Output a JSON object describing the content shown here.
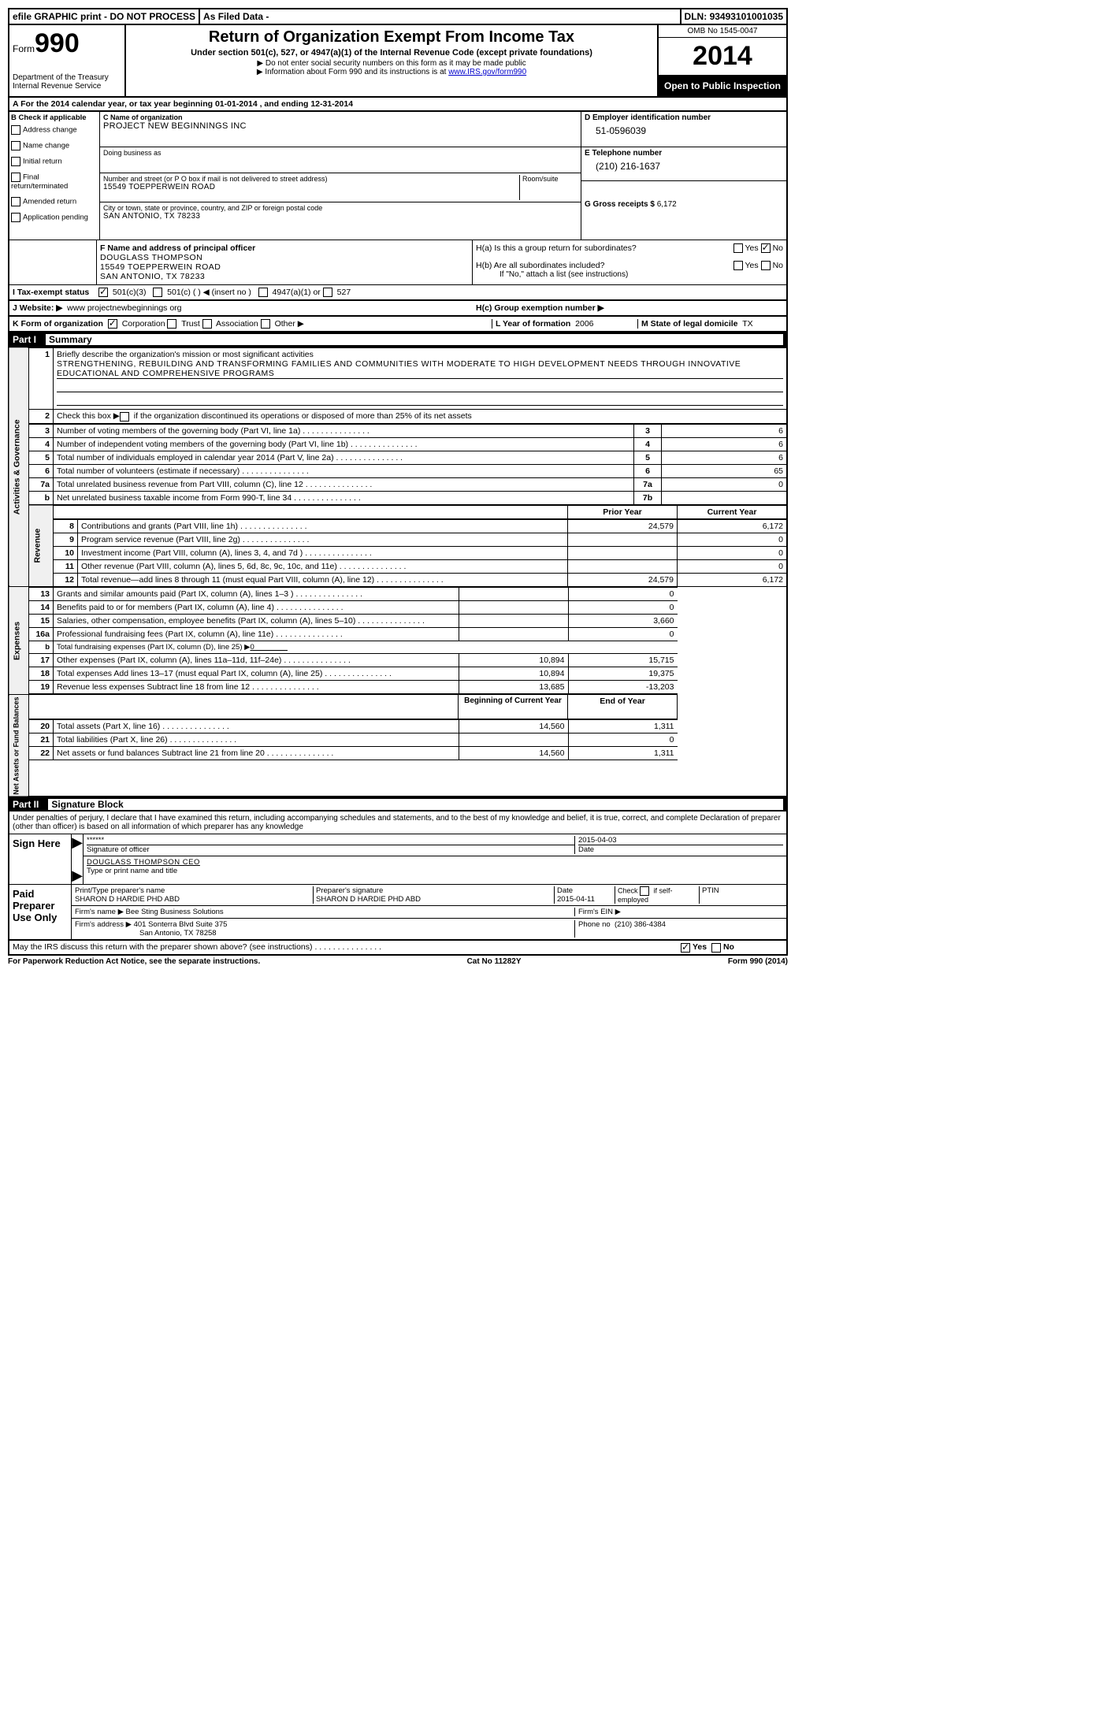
{
  "top": {
    "efile": "efile GRAPHIC print - DO NOT PROCESS",
    "asfiled": "As Filed Data -",
    "dln_label": "DLN:",
    "dln": "93493101001035"
  },
  "header": {
    "form_label": "Form",
    "form_num": "990",
    "dept": "Department of the Treasury",
    "irs": "Internal Revenue Service",
    "title": "Return of Organization Exempt From Income Tax",
    "subtitle": "Under section 501(c), 527, or 4947(a)(1) of the Internal Revenue Code (except private foundations)",
    "note1": "▶ Do not enter social security numbers on this form as it may be made public",
    "note2_pre": "▶ Information about Form 990 and its instructions is at ",
    "note2_link": "www.IRS.gov/form990",
    "omb": "OMB No 1545-0047",
    "year": "2014",
    "inspection": "Open to Public Inspection"
  },
  "row_a": "A For the 2014 calendar year, or tax year beginning 01-01-2014    , and ending 12-31-2014",
  "check_b": {
    "title": "B  Check if applicable",
    "opts": [
      "Address change",
      "Name change",
      "Initial return",
      "Final return/terminated",
      "Amended return",
      "Application pending"
    ]
  },
  "box_c": {
    "c_label": "C Name of organization",
    "name": "PROJECT NEW BEGINNINGS INC",
    "dba_label": "Doing business as",
    "addr_label": "Number and street (or P O  box if mail is not delivered to street address)",
    "room_label": "Room/suite",
    "addr": "15549 TOEPPERWEIN ROAD",
    "city_label": "City or town, state or province, country, and ZIP or foreign postal code",
    "city": "SAN ANTONIO, TX  78233"
  },
  "box_d": {
    "d_label": "D Employer identification number",
    "ein": "51-0596039",
    "e_label": "E Telephone number",
    "phone": "(210) 216-1637",
    "g_label": "G Gross receipts $",
    "g_val": "6,172"
  },
  "box_f": {
    "f_label": "F  Name and address of principal officer",
    "name": "DOUGLASS THOMPSON",
    "addr1": "15549 TOEPPERWEIN ROAD",
    "addr2": "SAN ANTONIO, TX 78233"
  },
  "box_h": {
    "ha": "H(a)  Is this a group return for subordinates?",
    "hb": "H(b)  Are all subordinates included?",
    "hb_note": "If \"No,\" attach a list  (see instructions)",
    "hc": "H(c)  Group exemption number ▶",
    "yes": "Yes",
    "no": "No"
  },
  "row_i": {
    "label": "I   Tax-exempt status",
    "opt1": "501(c)(3)",
    "opt2": "501(c) (   ) ◀ (insert no )",
    "opt3": "4947(a)(1) or",
    "opt4": "527"
  },
  "row_j": {
    "label": "J  Website: ▶",
    "val": "www projectnewbeginnings org"
  },
  "row_k": {
    "label": "K Form of organization",
    "opts": [
      "Corporation",
      "Trust",
      "Association",
      "Other ▶"
    ],
    "l_label": "L Year of formation",
    "l_val": "2006",
    "m_label": "M State of legal domicile",
    "m_val": "TX"
  },
  "part1": {
    "label": "Part I",
    "title": "Summary",
    "sections": {
      "ag": "Activities & Governance",
      "rev": "Revenue",
      "exp": "Expenses",
      "na": "Net Assets or Fund Balances"
    },
    "l1_label": "Briefly describe the organization's mission or most significant activities",
    "l1_text": "STRENGTHENING, REBUILDING AND TRANSFORMING FAMILIES AND COMMUNITIES WITH MODERATE TO HIGH DEVELOPMENT NEEDS THROUGH INNOVATIVE EDUCATIONAL AND COMPREHENSIVE PROGRAMS",
    "l2": "Check this box ▶     if the organization discontinued its operations or disposed of more than 25% of its net assets",
    "lines_ag": [
      {
        "n": "3",
        "t": "Number of voting members of the governing body (Part VI, line 1a)",
        "k": "3",
        "v": "6"
      },
      {
        "n": "4",
        "t": "Number of independent voting members of the governing body (Part VI, line 1b)",
        "k": "4",
        "v": "6"
      },
      {
        "n": "5",
        "t": "Total number of individuals employed in calendar year 2014 (Part V, line 2a)",
        "k": "5",
        "v": "6"
      },
      {
        "n": "6",
        "t": "Total number of volunteers (estimate if necessary)",
        "k": "6",
        "v": "65"
      },
      {
        "n": "7a",
        "t": "Total unrelated business revenue from Part VIII, column (C), line 12",
        "k": "7a",
        "v": "0"
      },
      {
        "n": "b",
        "t": "Net unrelated business taxable income from Form 990-T, line 34",
        "k": "7b",
        "v": ""
      }
    ],
    "col_headers": {
      "prior": "Prior Year",
      "current": "Current Year",
      "boy": "Beginning of Current Year",
      "eoy": "End of Year"
    },
    "lines_rev": [
      {
        "n": "8",
        "t": "Contributions and grants (Part VIII, line 1h)",
        "p": "24,579",
        "c": "6,172"
      },
      {
        "n": "9",
        "t": "Program service revenue (Part VIII, line 2g)",
        "p": "",
        "c": "0"
      },
      {
        "n": "10",
        "t": "Investment income (Part VIII, column (A), lines 3, 4, and 7d )",
        "p": "",
        "c": "0"
      },
      {
        "n": "11",
        "t": "Other revenue (Part VIII, column (A), lines 5, 6d, 8c, 9c, 10c, and 11e)",
        "p": "",
        "c": "0"
      },
      {
        "n": "12",
        "t": "Total revenue—add lines 8 through 11 (must equal Part VIII, column (A), line 12)",
        "p": "24,579",
        "c": "6,172"
      }
    ],
    "lines_exp": [
      {
        "n": "13",
        "t": "Grants and similar amounts paid (Part IX, column (A), lines 1–3 )",
        "p": "",
        "c": "0"
      },
      {
        "n": "14",
        "t": "Benefits paid to or for members (Part IX, column (A), line 4)",
        "p": "",
        "c": "0"
      },
      {
        "n": "15",
        "t": "Salaries, other compensation, employee benefits (Part IX, column (A), lines 5–10)",
        "p": "",
        "c": "3,660"
      },
      {
        "n": "16a",
        "t": "Professional fundraising fees (Part IX, column (A), line 11e)",
        "p": "",
        "c": "0"
      },
      {
        "n": "b",
        "t": "Total fundraising expenses (Part IX, column (D), line 25) ▶",
        "p": "—",
        "c": "—",
        "inline": "0"
      },
      {
        "n": "17",
        "t": "Other expenses (Part IX, column (A), lines 11a–11d, 11f–24e)",
        "p": "10,894",
        "c": "15,715"
      },
      {
        "n": "18",
        "t": "Total expenses  Add lines 13–17 (must equal Part IX, column (A), line 25)",
        "p": "10,894",
        "c": "19,375"
      },
      {
        "n": "19",
        "t": "Revenue less expenses  Subtract line 18 from line 12",
        "p": "13,685",
        "c": "-13,203"
      }
    ],
    "lines_na": [
      {
        "n": "20",
        "t": "Total assets (Part X, line 16)",
        "p": "14,560",
        "c": "1,311"
      },
      {
        "n": "21",
        "t": "Total liabilities (Part X, line 26)",
        "p": "",
        "c": "0"
      },
      {
        "n": "22",
        "t": "Net assets or fund balances  Subtract line 21 from line 20",
        "p": "14,560",
        "c": "1,311"
      }
    ]
  },
  "part2": {
    "label": "Part II",
    "title": "Signature Block",
    "perjury": "Under penalties of perjury, I declare that I have examined this return, including accompanying schedules and statements, and to the best of my knowledge and belief, it is true, correct, and complete  Declaration of preparer (other than officer) is based on all information of which preparer has any knowledge",
    "sign_here": "Sign Here",
    "paid_prep": "Paid Preparer Use Only",
    "sig_stars": "******",
    "sig_officer_label": "Signature of officer",
    "sig_date_label": "Date",
    "sig_date": "2015-04-03",
    "sig_name": "DOUGLASS THOMPSON CEO",
    "sig_name_label": "Type or print name and title",
    "prep_name_label": "Print/Type preparer's name",
    "prep_name": "SHARON D HARDIE PHD ABD",
    "prep_sig_label": "Preparer's signature",
    "prep_sig": "SHARON D HARDIE PHD ABD",
    "prep_date_label": "Date",
    "prep_date": "2015-04-11",
    "self_emp": "Check       if self-employed",
    "ptin": "PTIN",
    "firm_name_label": "Firm's name    ▶",
    "firm_name": "Bee Sting Business Solutions",
    "firm_ein_label": "Firm's EIN ▶",
    "firm_addr_label": "Firm's address ▶",
    "firm_addr1": "401 Sonterra Blvd Suite 375",
    "firm_addr2": "San Antonio, TX  78258",
    "firm_phone_label": "Phone no",
    "firm_phone": "(210) 386-4384",
    "discuss": "May the IRS discuss this return with the preparer shown above? (see instructions)"
  },
  "footer": {
    "pra": "For Paperwork Reduction Act Notice, see the separate instructions.",
    "cat": "Cat No 11282Y",
    "form": "Form 990 (2014)"
  }
}
